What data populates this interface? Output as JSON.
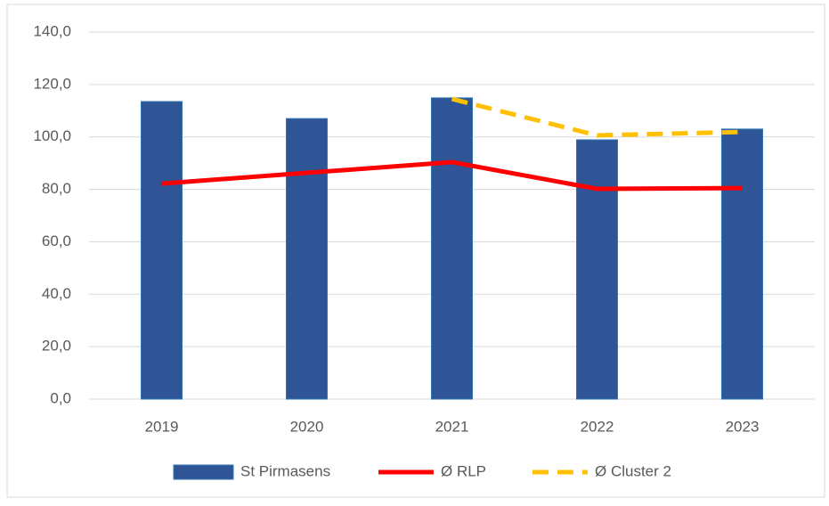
{
  "chart_data": {
    "type": "bar",
    "categories": [
      "2019",
      "2020",
      "2021",
      "2022",
      "2023"
    ],
    "series": [
      {
        "name": "St Pirmasens",
        "type": "bar",
        "color": "#2f5597",
        "values": [
          113.5,
          107,
          114.9,
          98.9,
          103
        ]
      },
      {
        "name": "Ø RLP",
        "type": "line",
        "color": "#ff0000",
        "values": [
          82.2,
          86.3,
          90.4,
          80.2,
          80.5
        ]
      },
      {
        "name": "Ø Cluster 2",
        "type": "line",
        "dash": true,
        "color": "#ffc000",
        "values": [
          null,
          null,
          114.5,
          100.6,
          101.9
        ]
      }
    ],
    "ylim": [
      0,
      140
    ],
    "yticks": [
      {
        "value": 0,
        "label": "0,0"
      },
      {
        "value": 20,
        "label": "20,0"
      },
      {
        "value": 40,
        "label": "40,0"
      },
      {
        "value": 60,
        "label": "60,0"
      },
      {
        "value": 80,
        "label": "80,0"
      },
      {
        "value": 100,
        "label": "100,0"
      },
      {
        "value": 120,
        "label": "120,0"
      },
      {
        "value": 140,
        "label": "140,0"
      }
    ],
    "grid": true,
    "legend": "bottom"
  }
}
